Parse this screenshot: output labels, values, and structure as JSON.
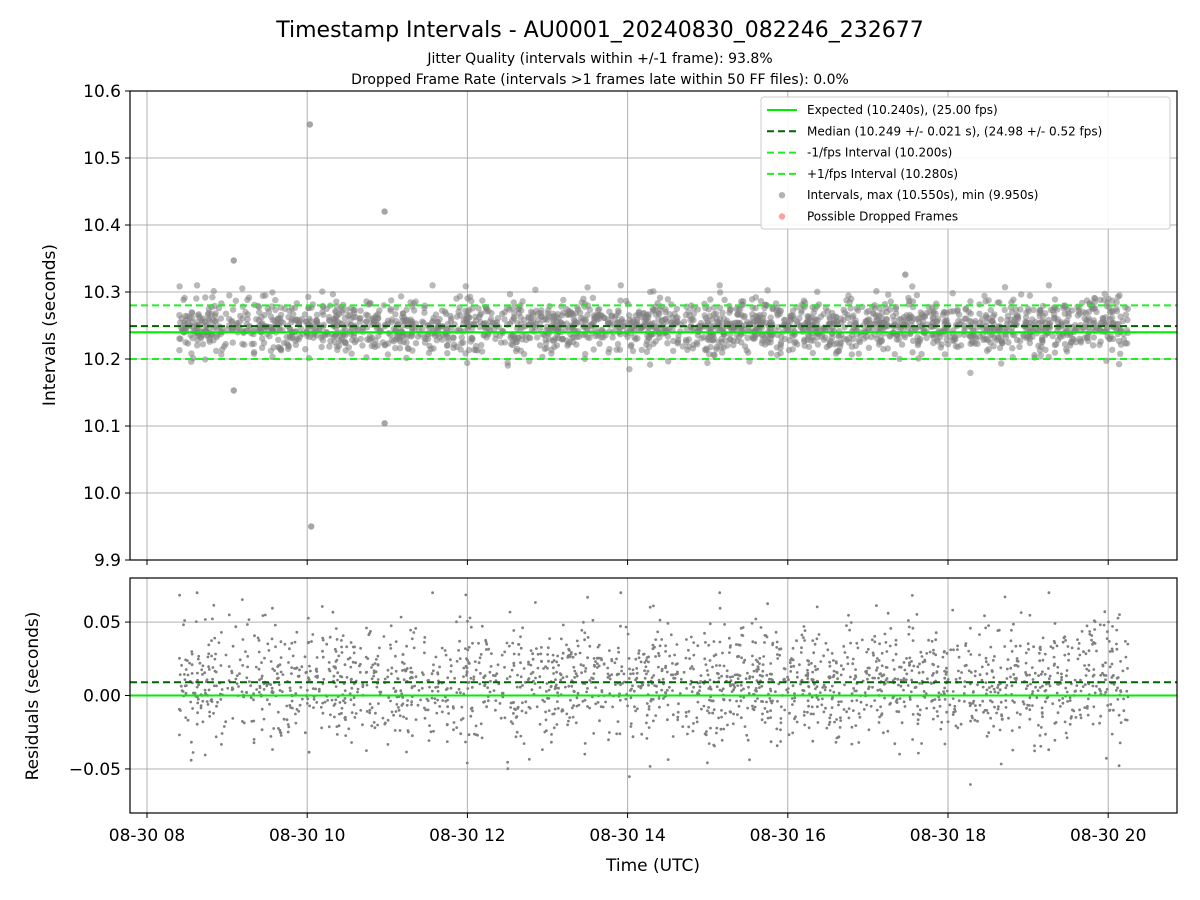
{
  "figure": {
    "title": "Timestamp Intervals - AU0001_20240830_082246_232677",
    "subtitle_1": "Jitter Quality (intervals within +/-1 frame): 93.8%",
    "subtitle_2": "Dropped Frame Rate (intervals >1 frames late within 50 FF files): 0.0%"
  },
  "colors": {
    "expected": "#00ee00",
    "median": "#006400",
    "interval_bounds": "#22ee22",
    "points": "#808080",
    "dropped": "#ff6060",
    "grid": "#b0b0b0"
  },
  "chart_data": [
    {
      "type": "scatter",
      "name": "intervals",
      "ylabel": "Intervals (seconds)",
      "xlabel": "",
      "ylim": [
        9.9,
        10.6
      ],
      "xlim_hours": [
        7.75,
        20.9
      ],
      "x_tick_hours": [
        8,
        10,
        12,
        14,
        16,
        18,
        20
      ],
      "y_ticks": [
        "9.9",
        "10.0",
        "10.1",
        "10.2",
        "10.3",
        "10.4",
        "10.5",
        "10.6"
      ],
      "grid": true,
      "legend_placement": "top-right",
      "legend": [
        {
          "label": "Expected (10.240s), (25.00 fps)",
          "style": "solid-line",
          "color": "#00ee00"
        },
        {
          "label": "Median (10.249 +/- 0.021 s), (24.98 +/- 0.52 fps)",
          "style": "dashed-line",
          "color": "#006400"
        },
        {
          "label": "-1/fps Interval (10.200s)",
          "style": "dashed-line",
          "color": "#22ee22"
        },
        {
          "label": "+1/fps Interval (10.280s)",
          "style": "dashed-line",
          "color": "#22ee22"
        },
        {
          "label": "Intervals, max (10.550s), min (9.950s)",
          "style": "marker",
          "color": "#808080"
        },
        {
          "label": "Possible Dropped Frames",
          "style": "marker",
          "color": "#ff6060"
        }
      ],
      "reference_lines": {
        "expected": 10.24,
        "median": 10.249,
        "minus_1fps": 10.2,
        "plus_1fps": 10.28
      },
      "time_range_hours": [
        8.4,
        20.25
      ],
      "typical_spread": {
        "center": 10.249,
        "std": 0.021
      },
      "outliers": [
        {
          "x": "08-30 10:02",
          "y": 10.55
        },
        {
          "x": "08-30 10:03",
          "y": 9.95
        },
        {
          "x": "08-30 10:58",
          "y": 10.42
        },
        {
          "x": "08-30 10:58",
          "y": 10.104
        },
        {
          "x": "08-30 09:05",
          "y": 10.347
        },
        {
          "x": "08-30 09:05",
          "y": 10.153
        },
        {
          "x": "08-30 17:28",
          "y": 10.326
        }
      ]
    },
    {
      "type": "scatter",
      "name": "residuals",
      "ylabel": "Residuals (seconds)",
      "xlabel": "Time (UTC)",
      "ylim": [
        -0.08,
        0.08
      ],
      "x_tick_hours": [
        8,
        10,
        12,
        14,
        16,
        18,
        20
      ],
      "x_ticks": [
        "08-30 08",
        "08-30 10",
        "08-30 12",
        "08-30 14",
        "08-30 16",
        "08-30 18",
        "08-30 20"
      ],
      "y_ticks": [
        "−0.05",
        "0.00",
        "0.05"
      ],
      "y_tick_values": [
        -0.05,
        0.0,
        0.05
      ],
      "reference_lines": {
        "zero": 0.0,
        "median": 0.009
      },
      "grid": true
    }
  ]
}
